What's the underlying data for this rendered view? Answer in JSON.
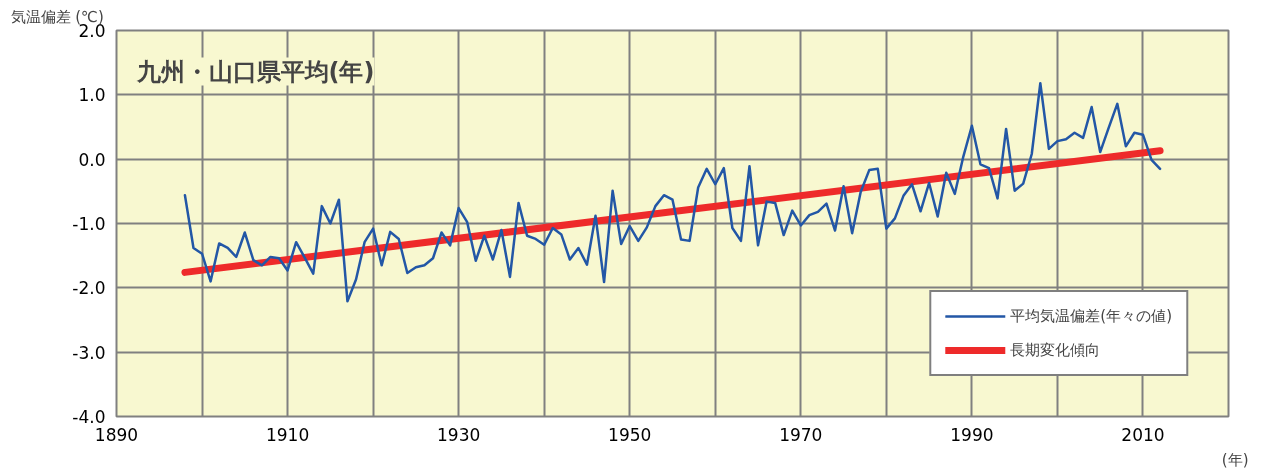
{
  "chart_data": {
    "type": "line",
    "title": "九州・山口県平均(年)",
    "ylabel": "気温偏差 (℃)",
    "xlabel": "(年)",
    "xlim": [
      1890,
      2020
    ],
    "ylim": [
      -4.0,
      2.0
    ],
    "xticks": [
      1890,
      {
        "value": 1900,
        "label": null
      },
      1910,
      {
        "value": 1920,
        "label": null
      },
      1930,
      {
        "value": 1940,
        "label": null
      },
      1950,
      {
        "value": 1960,
        "label": null
      },
      1970,
      {
        "value": 1980,
        "label": null
      },
      1990,
      {
        "value": 2000,
        "label": null
      },
      2010,
      {
        "value": 2020,
        "label": null
      }
    ],
    "yticks": [
      {
        "value": -4.0,
        "label": "-4.0"
      },
      {
        "value": -3.0,
        "label": "-3.0"
      },
      {
        "value": -2.0,
        "label": "-2.0"
      },
      {
        "value": -1.0,
        "label": "-1.0"
      },
      {
        "value": 0.0,
        "label": "0.0"
      },
      {
        "value": 1.0,
        "label": "1.0"
      },
      {
        "value": 2.0,
        "label": "2.0"
      }
    ],
    "grid": true,
    "legend": "bottom right",
    "marker": "none",
    "series": [
      {
        "name": "平均気温偏差(年々の値)",
        "color": "#2357a6",
        "x": [
          1898,
          1899,
          1900,
          1901,
          1902,
          1903,
          1904,
          1905,
          1906,
          1907,
          1908,
          1909,
          1910,
          1911,
          1912,
          1913,
          1914,
          1915,
          1916,
          1917,
          1918,
          1919,
          1920,
          1921,
          1922,
          1923,
          1924,
          1925,
          1926,
          1927,
          1928,
          1929,
          1930,
          1931,
          1932,
          1933,
          1934,
          1935,
          1936,
          1937,
          1938,
          1939,
          1940,
          1941,
          1942,
          1943,
          1944,
          1945,
          1946,
          1947,
          1948,
          1949,
          1950,
          1951,
          1952,
          1953,
          1954,
          1955,
          1956,
          1957,
          1958,
          1959,
          1960,
          1961,
          1962,
          1963,
          1964,
          1965,
          1966,
          1967,
          1968,
          1969,
          1970,
          1971,
          1972,
          1973,
          1974,
          1975,
          1976,
          1977,
          1978,
          1979,
          1980,
          1981,
          1982,
          1983,
          1984,
          1985,
          1986,
          1987,
          1988,
          1989,
          1990,
          1991,
          1992,
          1993,
          1994,
          1995,
          1996,
          1997,
          1998,
          1999,
          2000,
          2001,
          2002,
          2003,
          2004,
          2005,
          2006,
          2007,
          2008,
          2009,
          2010,
          2011,
          2012
        ],
        "values": [
          -0.56,
          -1.38,
          -1.47,
          -1.9,
          -1.31,
          -1.38,
          -1.52,
          -1.14,
          -1.57,
          -1.65,
          -1.52,
          -1.54,
          -1.73,
          -1.29,
          -1.53,
          -1.78,
          -0.73,
          -1.0,
          -0.63,
          -2.21,
          -1.87,
          -1.29,
          -1.08,
          -1.65,
          -1.13,
          -1.24,
          -1.77,
          -1.68,
          -1.65,
          -1.54,
          -1.14,
          -1.34,
          -0.76,
          -0.98,
          -1.58,
          -1.19,
          -1.56,
          -1.1,
          -1.83,
          -0.68,
          -1.19,
          -1.24,
          -1.33,
          -1.07,
          -1.17,
          -1.56,
          -1.38,
          -1.64,
          -0.88,
          -1.91,
          -0.49,
          -1.32,
          -1.04,
          -1.27,
          -1.06,
          -0.73,
          -0.56,
          -0.63,
          -1.25,
          -1.27,
          -0.44,
          -0.15,
          -0.39,
          -0.14,
          -1.07,
          -1.27,
          -0.11,
          -1.34,
          -0.66,
          -0.68,
          -1.18,
          -0.8,
          -1.03,
          -0.87,
          -0.82,
          -0.69,
          -1.11,
          -0.42,
          -1.15,
          -0.51,
          -0.17,
          -0.15,
          -1.08,
          -0.92,
          -0.57,
          -0.39,
          -0.81,
          -0.37,
          -0.89,
          -0.21,
          -0.54,
          0.04,
          0.52,
          -0.08,
          -0.14,
          -0.61,
          0.47,
          -0.49,
          -0.38,
          0.08,
          1.18,
          0.16,
          0.28,
          0.31,
          0.41,
          0.33,
          0.81,
          0.11,
          0.49,
          0.86,
          0.2,
          0.41,
          0.38,
          -0.01,
          -0.15
        ]
      },
      {
        "name": "長期変化傾向",
        "color": "#ee2a2a",
        "x": [
          1898,
          2012
        ],
        "values": [
          -1.76,
          0.13
        ],
        "line_style": "solid"
      }
    ]
  }
}
